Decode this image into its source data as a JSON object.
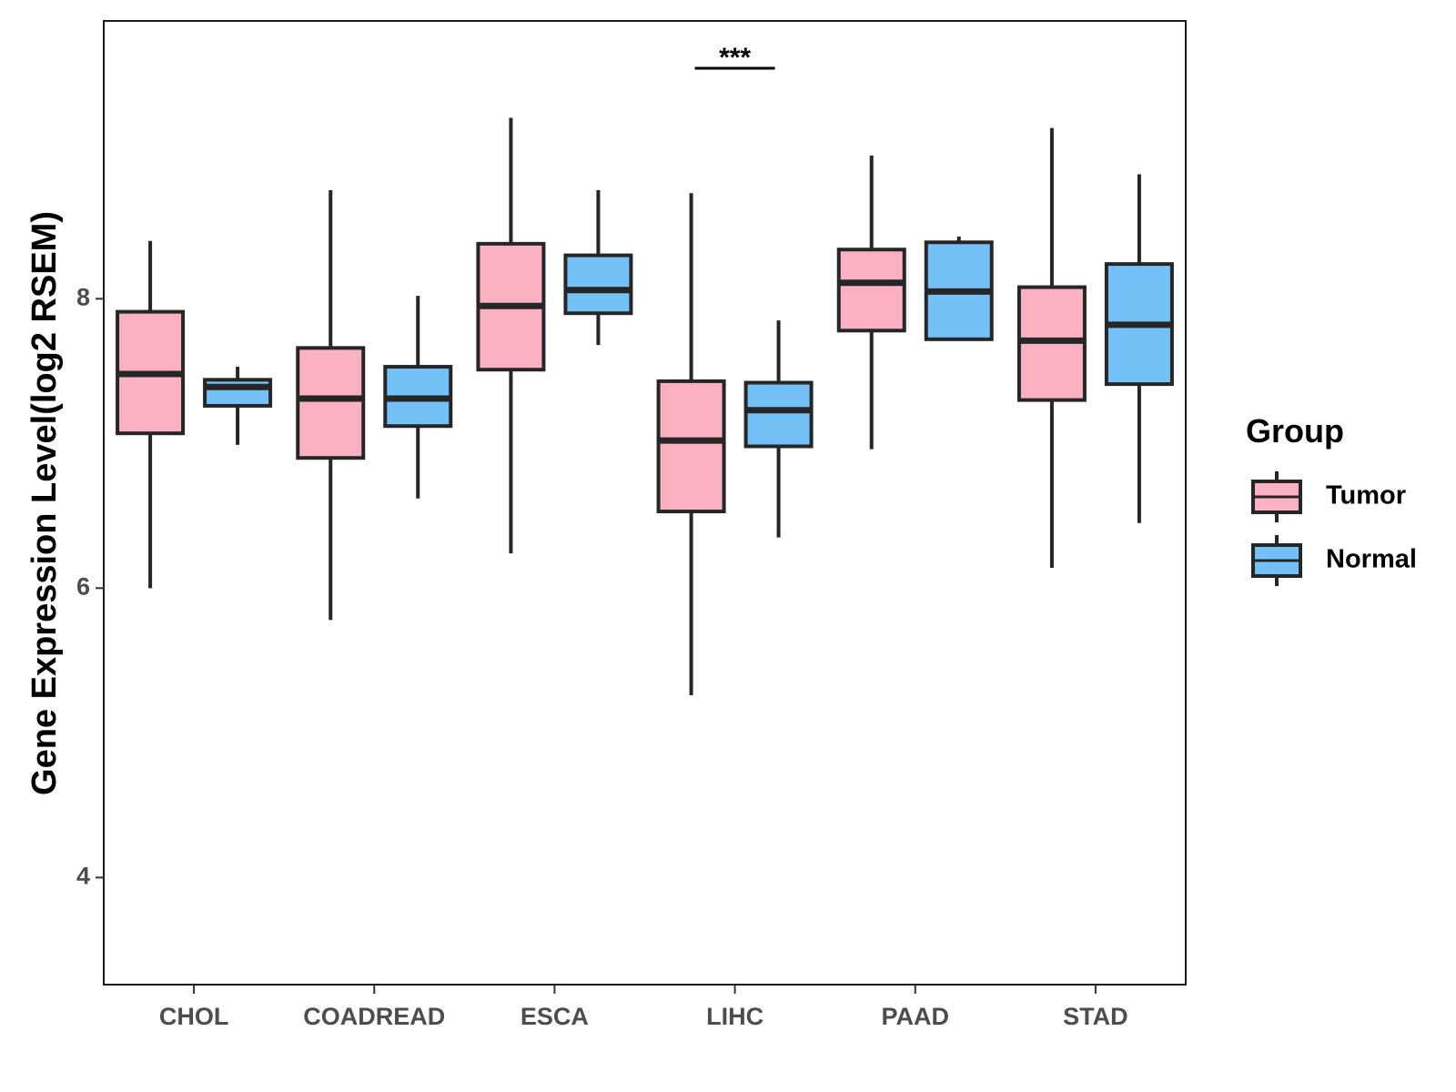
{
  "chart_data": {
    "type": "boxplot",
    "ylabel": "Gene Expression Level(log2 RSEM)",
    "xlabel": "",
    "ylim": [
      3.26,
      9.92
    ],
    "yticks": [
      4,
      6,
      8
    ],
    "categories": [
      "CHOL",
      "COADREAD",
      "ESCA",
      "LIHC",
      "PAAD",
      "STAD"
    ],
    "series": [
      {
        "name": "Tumor",
        "color": "#FBB1C2",
        "boxes": [
          {
            "whislo": 6.0,
            "q1": 7.07,
            "median": 7.48,
            "q3": 7.91,
            "whishi": 8.4
          },
          {
            "whislo": 5.78,
            "q1": 6.9,
            "median": 7.31,
            "q3": 7.66,
            "whishi": 8.75
          },
          {
            "whislo": 6.24,
            "q1": 7.51,
            "median": 7.95,
            "q3": 8.38,
            "whishi": 9.25
          },
          {
            "whislo": 5.26,
            "q1": 6.53,
            "median": 7.02,
            "q3": 7.43,
            "whishi": 8.73
          },
          {
            "whislo": 6.96,
            "q1": 7.78,
            "median": 8.11,
            "q3": 8.34,
            "whishi": 8.99
          },
          {
            "whislo": 6.14,
            "q1": 7.3,
            "median": 7.71,
            "q3": 8.08,
            "whishi": 9.18
          }
        ]
      },
      {
        "name": "Normal",
        "color": "#74C1F8",
        "boxes": [
          {
            "whislo": 6.99,
            "q1": 7.26,
            "median": 7.39,
            "q3": 7.44,
            "whishi": 7.53
          },
          {
            "whislo": 6.62,
            "q1": 7.12,
            "median": 7.31,
            "q3": 7.53,
            "whishi": 8.02
          },
          {
            "whislo": 7.68,
            "q1": 7.9,
            "median": 8.06,
            "q3": 8.3,
            "whishi": 8.75
          },
          {
            "whislo": 6.35,
            "q1": 6.98,
            "median": 7.23,
            "q3": 7.42,
            "whishi": 7.85
          },
          {
            "whislo": 7.72,
            "q1": 7.72,
            "median": 8.05,
            "q3": 8.39,
            "whishi": 8.43
          },
          {
            "whislo": 6.45,
            "q1": 7.41,
            "median": 7.82,
            "q3": 8.24,
            "whishi": 8.86
          }
        ]
      }
    ],
    "significance": [
      {
        "category": "LIHC",
        "label": "***"
      }
    ],
    "legend": {
      "title": "Group",
      "position": "right",
      "entries": [
        "Tumor",
        "Normal"
      ]
    },
    "grid": false
  }
}
